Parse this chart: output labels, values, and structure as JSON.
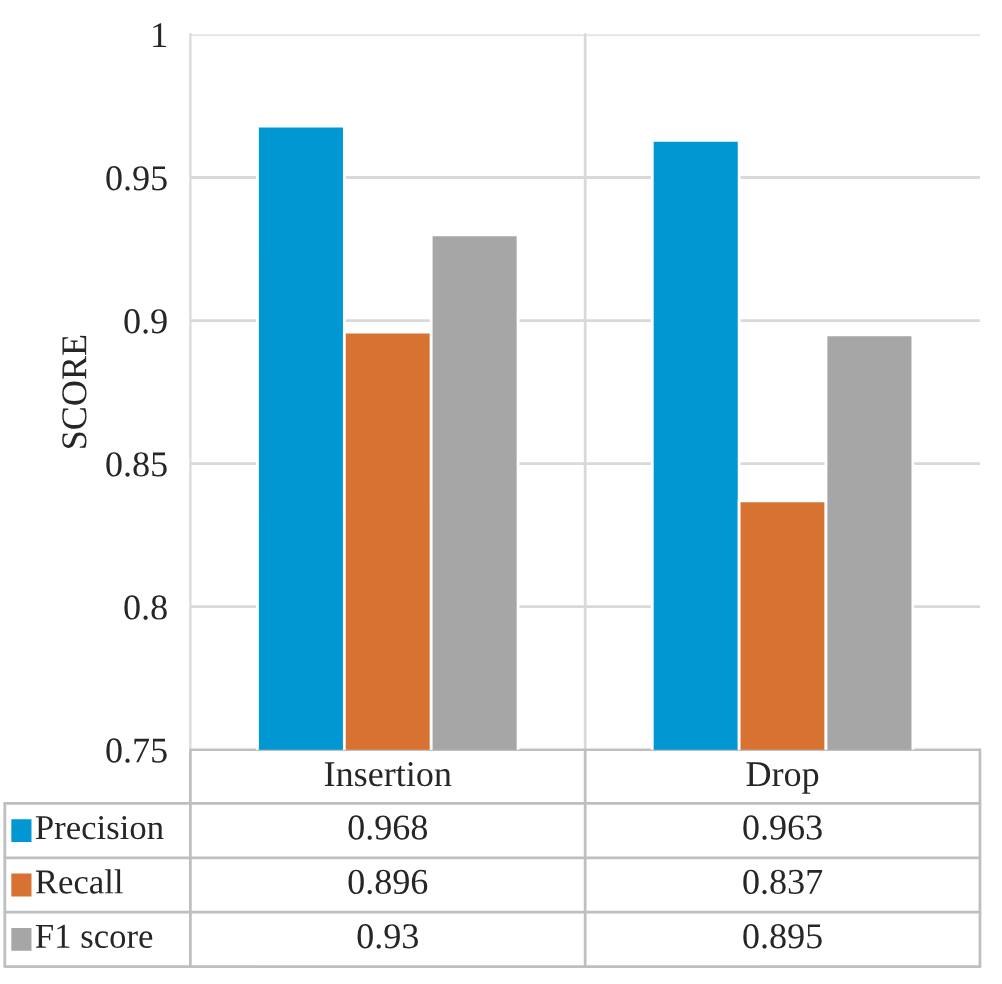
{
  "chart_data": {
    "type": "bar",
    "ylabel": "SCORE",
    "categories": [
      "Insertion",
      "Drop"
    ],
    "series": [
      {
        "name": "Precision",
        "color": "#0097d2",
        "values": [
          0.968,
          0.963
        ]
      },
      {
        "name": "Recall",
        "color": "#d87233",
        "values": [
          0.896,
          0.837
        ]
      },
      {
        "name": "F1 score",
        "color": "#a6a6a6",
        "values": [
          0.93,
          0.895
        ]
      }
    ],
    "ylim": [
      0.75,
      1
    ],
    "yticks": [
      0.75,
      0.8,
      0.85,
      0.9,
      0.95,
      1
    ],
    "grid": "y",
    "data_labels": true,
    "legend": "bottom left"
  }
}
